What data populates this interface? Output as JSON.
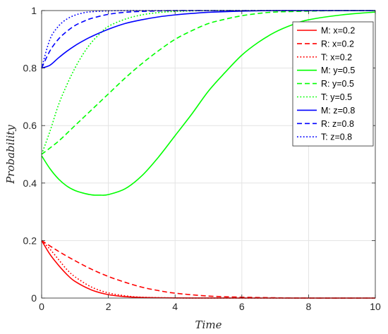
{
  "chart_data": {
    "type": "line",
    "xlabel": "Time",
    "ylabel": "Probability",
    "xlim": [
      0,
      10
    ],
    "ylim": [
      0,
      1
    ],
    "xticks": [
      "0",
      "2",
      "4",
      "6",
      "8",
      "10"
    ],
    "yticks": [
      "0",
      "0.2",
      "0.4",
      "0.6",
      "0.8",
      "1"
    ],
    "grid": true,
    "legend_position": "top-right",
    "series": [
      {
        "name": "M: x=0.2",
        "color": "#ff0000",
        "dash": "solid",
        "x": [
          0,
          0.25,
          0.5,
          0.75,
          1,
          1.5,
          2,
          2.5,
          3,
          4,
          5,
          6,
          8,
          10
        ],
        "y": [
          0.2,
          0.152,
          0.115,
          0.083,
          0.058,
          0.028,
          0.012,
          0.005,
          0.002,
          0.0005,
          0.0001,
          0,
          0,
          0
        ]
      },
      {
        "name": "R: x=0.2",
        "color": "#ff0000",
        "dash": "dashed",
        "x": [
          0,
          0.5,
          1,
          1.5,
          2,
          2.5,
          3,
          3.5,
          4,
          5,
          6,
          7,
          8,
          10
        ],
        "y": [
          0.2,
          0.163,
          0.13,
          0.1,
          0.075,
          0.055,
          0.038,
          0.026,
          0.017,
          0.007,
          0.003,
          0.001,
          0,
          0
        ]
      },
      {
        "name": "T: x=0.2",
        "color": "#ff0000",
        "dash": "dotted",
        "x": [
          0,
          0.25,
          0.5,
          0.75,
          1,
          1.5,
          2,
          2.5,
          3,
          4,
          5,
          6,
          8,
          10
        ],
        "y": [
          0.2,
          0.17,
          0.135,
          0.1,
          0.074,
          0.038,
          0.018,
          0.008,
          0.003,
          0.0005,
          0.0001,
          0,
          0,
          0
        ]
      },
      {
        "name": "M: y=0.5",
        "color": "#00ff00",
        "dash": "solid",
        "x": [
          0,
          0.25,
          0.5,
          0.75,
          1,
          1.25,
          1.5,
          1.75,
          2,
          2.5,
          3,
          3.5,
          4,
          4.5,
          5,
          5.5,
          6,
          6.5,
          7,
          7.5,
          8,
          9,
          10
        ],
        "y": [
          0.495,
          0.45,
          0.415,
          0.39,
          0.374,
          0.365,
          0.359,
          0.358,
          0.36,
          0.38,
          0.425,
          0.49,
          0.565,
          0.64,
          0.72,
          0.785,
          0.845,
          0.89,
          0.925,
          0.95,
          0.968,
          0.985,
          0.995
        ]
      },
      {
        "name": "R: y=0.5",
        "color": "#00ff00",
        "dash": "dashed",
        "x": [
          0,
          0.5,
          1,
          1.5,
          2,
          2.5,
          3,
          3.5,
          4,
          4.5,
          5,
          5.5,
          6,
          6.5,
          7,
          8,
          9,
          10
        ],
        "y": [
          0.5,
          0.545,
          0.6,
          0.655,
          0.71,
          0.765,
          0.815,
          0.86,
          0.9,
          0.93,
          0.955,
          0.97,
          0.982,
          0.99,
          0.995,
          0.998,
          1,
          1
        ]
      },
      {
        "name": "T: y=0.5",
        "color": "#00ff00",
        "dash": "dotted",
        "x": [
          0,
          0.25,
          0.5,
          0.75,
          1,
          1.25,
          1.5,
          1.75,
          2,
          2.5,
          3,
          3.5,
          4,
          5,
          6,
          8,
          10
        ],
        "y": [
          0.5,
          0.58,
          0.67,
          0.74,
          0.8,
          0.85,
          0.89,
          0.92,
          0.945,
          0.97,
          0.985,
          0.993,
          0.997,
          1,
          1,
          1,
          1
        ]
      },
      {
        "name": "M: z=0.8",
        "color": "#0000ff",
        "dash": "solid",
        "x": [
          0,
          0.25,
          0.5,
          0.75,
          1,
          1.25,
          1.5,
          2,
          2.5,
          3,
          3.5,
          4,
          4.5,
          5,
          6,
          7,
          8,
          10
        ],
        "y": [
          0.8,
          0.81,
          0.835,
          0.858,
          0.878,
          0.895,
          0.91,
          0.935,
          0.955,
          0.968,
          0.978,
          0.985,
          0.99,
          0.994,
          0.998,
          1,
          1,
          1
        ]
      },
      {
        "name": "R: z=0.8",
        "color": "#0000ff",
        "dash": "dashed",
        "x": [
          0,
          0.25,
          0.5,
          0.75,
          1,
          1.25,
          1.5,
          2,
          2.5,
          3,
          4,
          5,
          6,
          8,
          10
        ],
        "y": [
          0.8,
          0.86,
          0.9,
          0.927,
          0.948,
          0.962,
          0.973,
          0.987,
          0.994,
          0.997,
          1,
          1,
          1,
          1,
          1
        ]
      },
      {
        "name": "T: z=0.8",
        "color": "#0000ff",
        "dash": "dotted",
        "x": [
          0,
          0.25,
          0.5,
          0.75,
          1,
          1.25,
          1.5,
          2,
          2.5,
          3,
          4,
          6,
          8,
          10
        ],
        "y": [
          0.8,
          0.9,
          0.945,
          0.97,
          0.984,
          0.992,
          0.996,
          0.999,
          1,
          1,
          1,
          1,
          1,
          1
        ]
      }
    ]
  }
}
